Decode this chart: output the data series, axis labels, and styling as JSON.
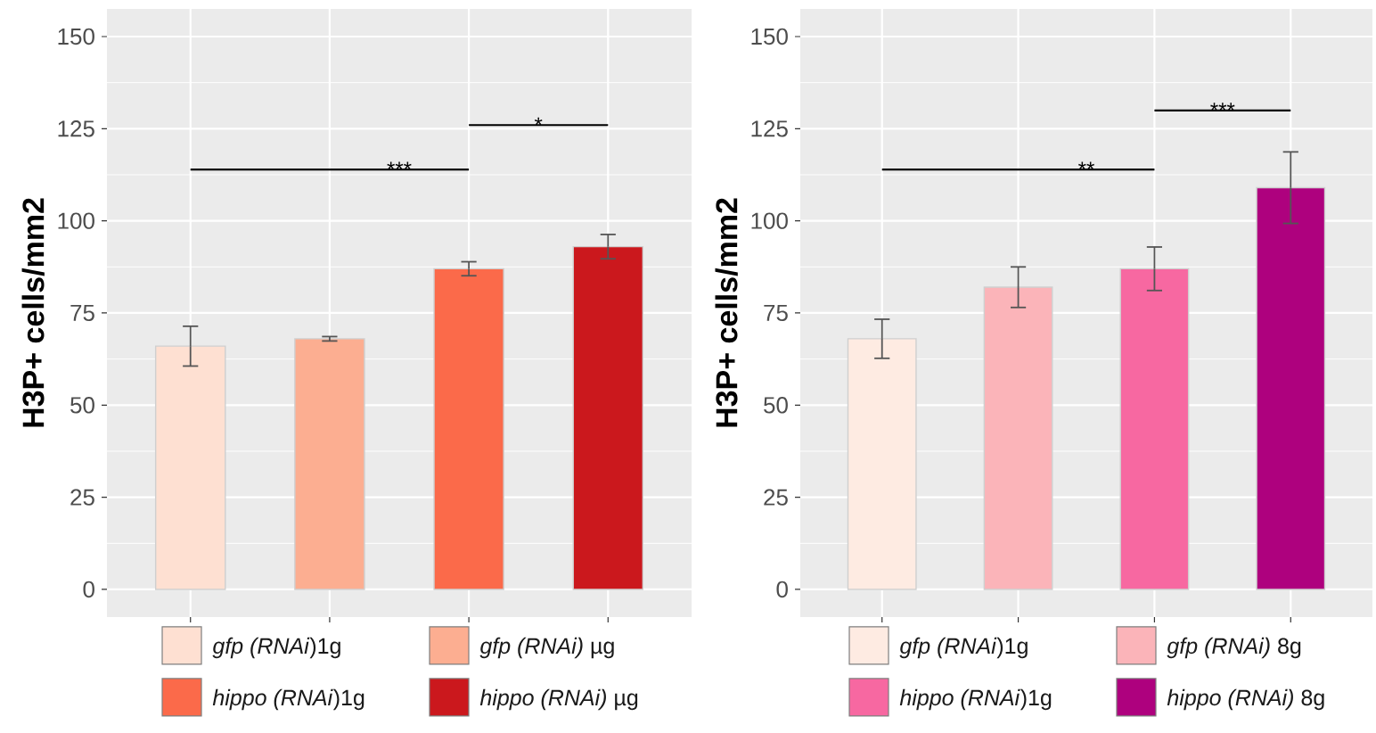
{
  "chart_data": [
    {
      "type": "bar",
      "ylabel": "H3P+ cells/mm2",
      "categories": [
        null,
        null,
        null,
        null
      ],
      "series": [
        {
          "name": "*gfp (RNAi*)1g",
          "color": "#fee0d2",
          "values": [
            66,
            null,
            null,
            null
          ],
          "errors": [
            5.4,
            null,
            null,
            null
          ]
        },
        {
          "name": "*gfp (RNAi)* µg",
          "color": "#fcae91",
          "values": [
            null,
            68,
            null,
            null
          ],
          "errors": [
            null,
            0.6,
            null,
            null
          ]
        },
        {
          "name": "*hippo (RNAi*)1g",
          "color": "#fb6a4a",
          "values": [
            null,
            null,
            87,
            null
          ],
          "errors": [
            null,
            null,
            1.9,
            null
          ]
        },
        {
          "name": "*hippo (RNAi)* µg",
          "color": "#cb181d",
          "values": [
            null,
            null,
            null,
            93
          ],
          "errors": [
            null,
            null,
            null,
            3.3
          ]
        }
      ],
      "ylim": [
        -7.5,
        157.5
      ],
      "yticks": [
        0,
        25,
        50,
        75,
        100,
        125,
        150
      ],
      "grid": true,
      "legend": "bottom",
      "tick_labels": "y",
      "annotations": [
        "***",
        "*"
      ]
    },
    {
      "type": "bar",
      "ylabel": "H3P+ cells/mm2",
      "categories": [
        null,
        null,
        null,
        null
      ],
      "series": [
        {
          "name": "*gfp (RNAi*)1g",
          "color": "#feebe2",
          "values": [
            68,
            null,
            null,
            null
          ],
          "errors": [
            5.3,
            null,
            null,
            null
          ]
        },
        {
          "name": "*gfp (RNAi)* 8g",
          "color": "#fbb4b9",
          "values": [
            null,
            82,
            null,
            null
          ],
          "errors": [
            null,
            5.5,
            null,
            null
          ]
        },
        {
          "name": "*hippo (RNAi*)1g",
          "color": "#f768a1",
          "values": [
            null,
            null,
            87,
            null
          ],
          "errors": [
            null,
            null,
            5.9,
            null
          ]
        },
        {
          "name": "*hippo (RNAi)* 8g",
          "color": "#ae017e",
          "values": [
            null,
            null,
            null,
            109
          ],
          "errors": [
            null,
            null,
            null,
            9.7
          ]
        }
      ],
      "ylim": [
        -7.5,
        157.5
      ],
      "yticks": [
        0,
        25,
        50,
        75,
        100,
        125,
        150
      ],
      "grid": true,
      "legend": "bottom",
      "tick_labels": "y",
      "annotations": [
        "**",
        "***"
      ]
    }
  ]
}
